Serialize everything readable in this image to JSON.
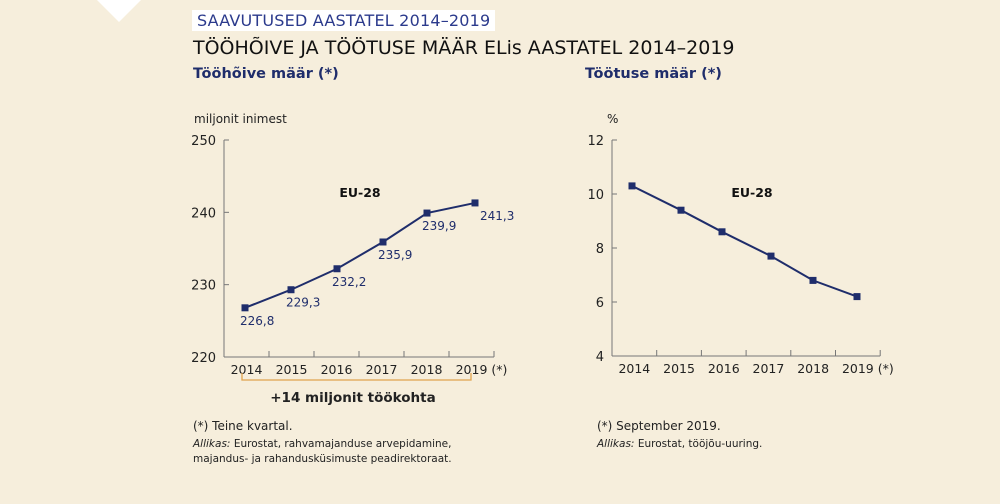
{
  "kicker": "SAAVUTUSED AASTATEL 2014–2019",
  "title": "TÖÖHÕIVE JA TÖÖTUSE MÄÄR ELis AASTATEL 2014–2019",
  "colors": {
    "background": "#f6eedc",
    "series": "#1f2d6b",
    "bracket": "#e0a34e",
    "axis": "#777777"
  },
  "chart_data": [
    {
      "type": "line",
      "title": "Tööhõive määr (*)",
      "ylabel": "miljonit inimest",
      "series_label": "EU-28",
      "categories": [
        "2014",
        "2015",
        "2016",
        "2017",
        "2018",
        "2019 (*)"
      ],
      "values": [
        226.8,
        229.3,
        232.2,
        235.9,
        239.9,
        241.3
      ],
      "data_labels": [
        "226,8",
        "229,3",
        "232,2",
        "235,9",
        "239,9",
        "241,3"
      ],
      "ylim": [
        220,
        250
      ],
      "yticks": [
        "220",
        "230",
        "240",
        "250"
      ],
      "annotation": "+14 miljonit töökohta",
      "footnote": "(*) Teine kvartal.",
      "source_label": "Allikas:",
      "source": "Eurostat, rahvamajanduse arvepidamine,",
      "source_line2": "majandus- ja rahandusküsimuste peadirektoraat.",
      "grid": false
    },
    {
      "type": "line",
      "title": "Töötuse määr (*)",
      "ylabel": "%",
      "series_label": "EU-28",
      "categories": [
        "2014",
        "2015",
        "2016",
        "2017",
        "2018",
        "2019 (*)"
      ],
      "values": [
        10.3,
        9.4,
        8.6,
        7.7,
        6.8,
        6.2
      ],
      "ylim": [
        4,
        12
      ],
      "yticks": [
        "4",
        "6",
        "8",
        "10",
        "12"
      ],
      "footnote": "(*) September 2019.",
      "source_label": "Allikas:",
      "source": "Eurostat, tööjõu-uuring.",
      "grid": false
    }
  ]
}
